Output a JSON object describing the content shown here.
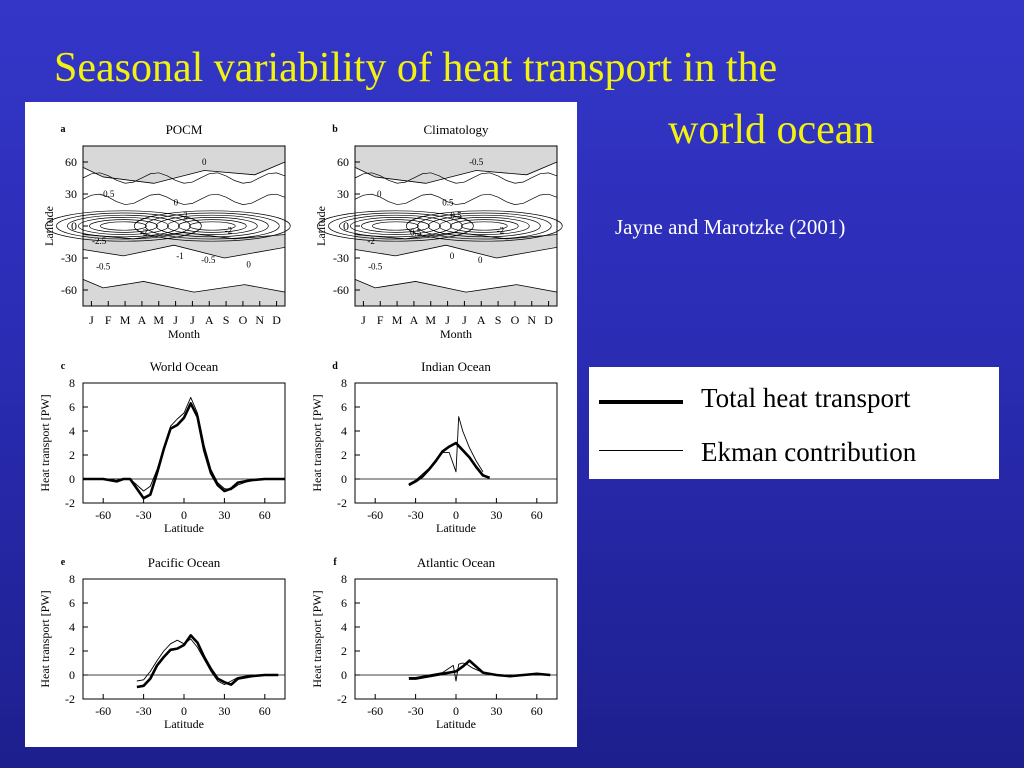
{
  "title": {
    "line1": "Seasonal variability of heat transport in the",
    "line2": "world ocean"
  },
  "citation": "Jayne and Marotzke (2001)",
  "legend": {
    "items": [
      {
        "label": "Total heat transport",
        "style": "thick"
      },
      {
        "label": "Ekman contribution",
        "style": "thin"
      }
    ]
  },
  "colors": {
    "background_top": "#3436c8",
    "background_bottom": "#1d1f8e",
    "title": "#f2f20f",
    "citation": "#ffffff",
    "contour_shade": "#d8d8d8"
  },
  "chart_data": [
    {
      "type": "heatmap",
      "panel_letter": "a",
      "title": "POCM",
      "xlabel": "Month",
      "ylabel": "Latitude",
      "x_ticks": [
        "J",
        "F",
        "M",
        "A",
        "M",
        "J",
        "J",
        "A",
        "S",
        "O",
        "N",
        "D"
      ],
      "y_ticks": [
        60,
        30,
        0,
        -30,
        -60
      ],
      "ylim": [
        -75,
        75
      ],
      "contour_labels": [
        "0",
        "-0.5",
        "0",
        "-2",
        "-2",
        "-2",
        "-2.5",
        "-0.5",
        "-1",
        "-0.5",
        "0"
      ]
    },
    {
      "type": "heatmap",
      "panel_letter": "b",
      "title": "Climatology",
      "xlabel": "Month",
      "ylabel": "Latitude",
      "x_ticks": [
        "J",
        "F",
        "M",
        "A",
        "M",
        "J",
        "J",
        "A",
        "S",
        "O",
        "N",
        "D"
      ],
      "y_ticks": [
        60,
        30,
        0,
        -30,
        -60
      ],
      "ylim": [
        -75,
        75
      ],
      "contour_labels": [
        "-0.5",
        "0",
        "0.5",
        "0.5",
        "0.5",
        "-2",
        "-2",
        "-0.5",
        "0",
        "0"
      ]
    },
    {
      "type": "line",
      "panel_letter": "c",
      "title": "World Ocean",
      "xlabel": "Latitude",
      "ylabel": "Heat transport [PW]",
      "xlim": [
        -75,
        75
      ],
      "ylim": [
        -2,
        8
      ],
      "x_ticks": [
        -60,
        -30,
        0,
        30,
        60
      ],
      "y_ticks": [
        8,
        6,
        4,
        2,
        0,
        -2
      ],
      "series": [
        {
          "style": "thick",
          "x": [
            -75,
            -60,
            -50,
            -45,
            -40,
            -35,
            -30,
            -25,
            -20,
            -15,
            -10,
            -5,
            0,
            5,
            10,
            15,
            20,
            25,
            30,
            35,
            40,
            50,
            60,
            70,
            75
          ],
          "y": [
            0,
            0,
            -0.2,
            0,
            0,
            -0.8,
            -1.6,
            -1.3,
            0.5,
            2.5,
            4.2,
            4.5,
            5.1,
            6.3,
            5.2,
            2.4,
            0.5,
            -0.5,
            -1,
            -0.8,
            -0.3,
            -0.1,
            0,
            0,
            0
          ]
        },
        {
          "style": "thin",
          "x": [
            -75,
            -60,
            -50,
            -40,
            -35,
            -30,
            -25,
            -20,
            -15,
            -10,
            -5,
            0,
            5,
            10,
            15,
            20,
            25,
            30,
            35,
            40,
            50,
            60,
            75
          ],
          "y": [
            0,
            0,
            0,
            0,
            -0.5,
            -1,
            -0.6,
            0.8,
            2.6,
            4.4,
            5,
            5.5,
            6.8,
            5.5,
            2.8,
            0.8,
            -0.3,
            -0.8,
            -0.9,
            -0.5,
            -0.1,
            0,
            0
          ]
        }
      ]
    },
    {
      "type": "line",
      "panel_letter": "d",
      "title": "Indian Ocean",
      "xlabel": "Latitude",
      "ylabel": "Heat transport [PW]",
      "xlim": [
        -75,
        75
      ],
      "ylim": [
        -2,
        8
      ],
      "x_ticks": [
        -60,
        -30,
        0,
        30,
        60
      ],
      "y_ticks": [
        8,
        6,
        4,
        2,
        0,
        -2
      ],
      "series": [
        {
          "style": "thick",
          "x": [
            -35,
            -30,
            -25,
            -20,
            -15,
            -10,
            -5,
            0,
            5,
            10,
            15,
            20,
            25
          ],
          "y": [
            -0.5,
            -0.2,
            0.2,
            0.8,
            1.5,
            2.3,
            2.7,
            3.0,
            2.4,
            1.8,
            1.0,
            0.3,
            0.1
          ]
        },
        {
          "style": "thin",
          "x": [
            -35,
            -30,
            -25,
            -20,
            -15,
            -10,
            -5,
            0,
            2,
            5,
            10,
            15,
            20
          ],
          "y": [
            -0.4,
            -0.1,
            0.4,
            0.9,
            1.6,
            2.2,
            2.2,
            0.6,
            5.2,
            4.0,
            2.6,
            1.5,
            0.6
          ]
        }
      ]
    },
    {
      "type": "line",
      "panel_letter": "e",
      "title": "Pacific Ocean",
      "xlabel": "Latitude",
      "ylabel": "Heat transport [PW]",
      "xlim": [
        -75,
        75
      ],
      "ylim": [
        -2,
        8
      ],
      "x_ticks": [
        -60,
        -30,
        0,
        30,
        60
      ],
      "y_ticks": [
        8,
        6,
        4,
        2,
        0,
        -2
      ],
      "series": [
        {
          "style": "thick",
          "x": [
            -35,
            -30,
            -25,
            -20,
            -15,
            -10,
            -5,
            0,
            5,
            10,
            15,
            20,
            25,
            30,
            35,
            40,
            50,
            60,
            70
          ],
          "y": [
            -1,
            -0.9,
            -0.3,
            0.8,
            1.5,
            2.1,
            2.2,
            2.5,
            3.3,
            2.7,
            1.5,
            0.5,
            -0.3,
            -0.6,
            -0.8,
            -0.3,
            -0.1,
            0,
            0
          ]
        },
        {
          "style": "thin",
          "x": [
            -35,
            -30,
            -25,
            -20,
            -15,
            -10,
            -5,
            0,
            5,
            10,
            15,
            20,
            25,
            30,
            35,
            40,
            50,
            60,
            70
          ],
          "y": [
            -0.5,
            -0.4,
            0.3,
            1.2,
            2.0,
            2.6,
            2.9,
            2.6,
            3.0,
            2.3,
            1.3,
            0.3,
            -0.5,
            -0.8,
            -0.5,
            -0.2,
            0,
            0,
            0
          ]
        }
      ]
    },
    {
      "type": "line",
      "panel_letter": "f",
      "title": "Atlantic Ocean",
      "xlabel": "Latitude",
      "ylabel": "Heat transport [PW]",
      "xlim": [
        -75,
        75
      ],
      "ylim": [
        -2,
        8
      ],
      "x_ticks": [
        -60,
        -30,
        0,
        30,
        60
      ],
      "y_ticks": [
        8,
        6,
        4,
        2,
        0,
        -2
      ],
      "series": [
        {
          "style": "thick",
          "x": [
            -35,
            -30,
            -20,
            -10,
            0,
            5,
            10,
            15,
            20,
            30,
            40,
            50,
            60,
            70
          ],
          "y": [
            -0.3,
            -0.3,
            -0.1,
            0.1,
            0.3,
            0.7,
            1.2,
            0.7,
            0.2,
            0,
            -0.1,
            0,
            0.1,
            0
          ]
        },
        {
          "style": "thin",
          "x": [
            -35,
            -30,
            -20,
            -10,
            -2,
            0,
            2,
            5,
            8,
            12,
            20,
            30,
            40,
            50,
            60,
            70
          ],
          "y": [
            -0.2,
            -0.2,
            0,
            0.2,
            0.8,
            -0.5,
            0.9,
            1.0,
            0.9,
            0.6,
            0.2,
            0,
            0,
            0,
            0,
            0
          ]
        }
      ]
    }
  ]
}
